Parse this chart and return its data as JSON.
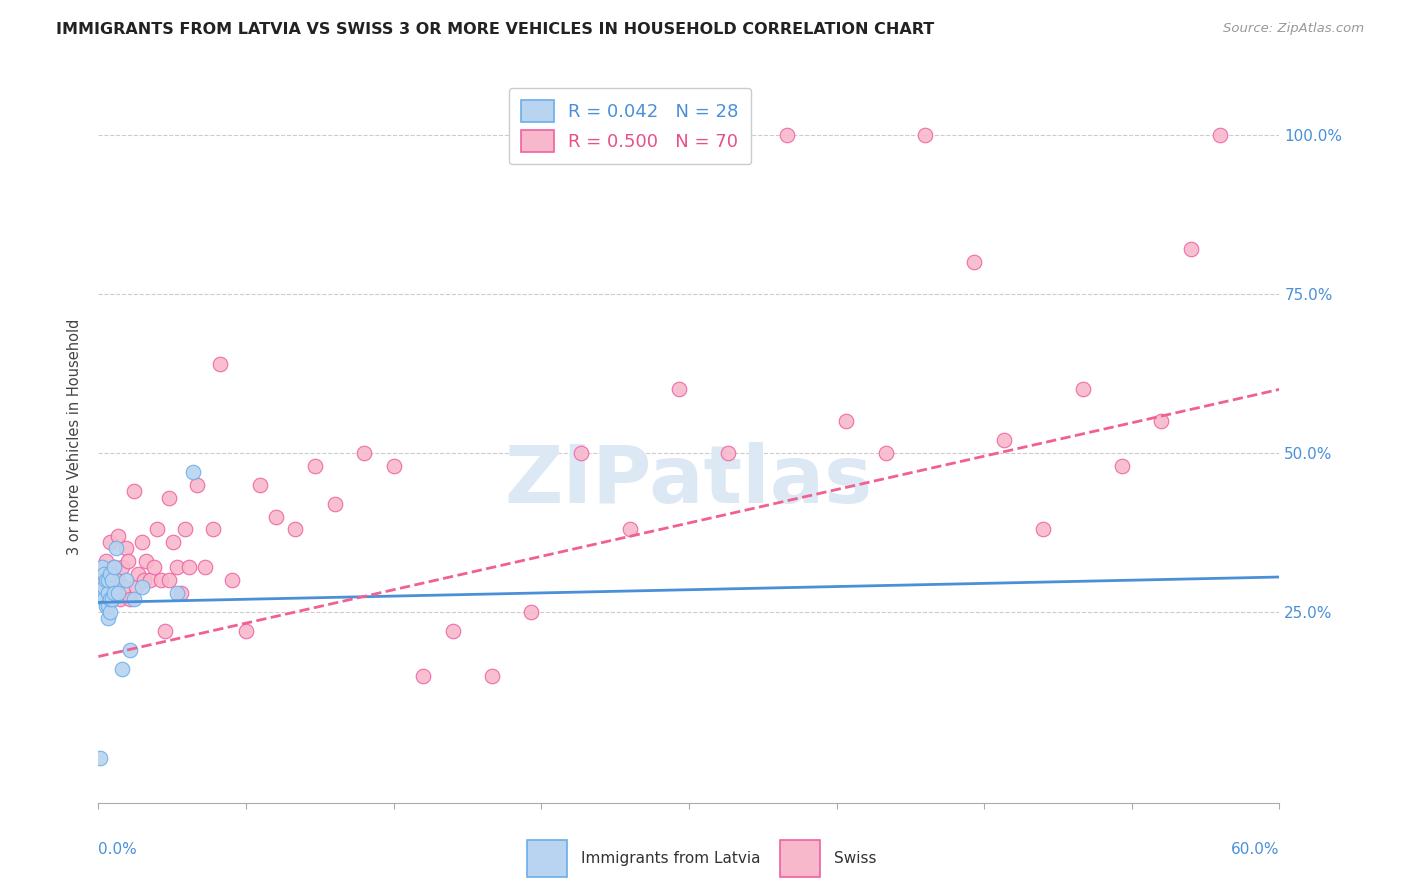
{
  "title": "IMMIGRANTS FROM LATVIA VS SWISS 3 OR MORE VEHICLES IN HOUSEHOLD CORRELATION CHART",
  "source": "Source: ZipAtlas.com",
  "ylabel": "3 or more Vehicles in Household",
  "color_latvia_fill": "#b8d4f0",
  "color_latvia_edge": "#6aaee8",
  "color_swiss_fill": "#f8b8cc",
  "color_swiss_edge": "#f060a0",
  "color_blue": "#4a90d9",
  "color_pink": "#e8508a",
  "color_line_blue": "#4a90d9",
  "color_line_pink": "#f06090",
  "watermark": "ZIPatlas",
  "legend_r1": "R = 0.042   N = 28",
  "legend_r2": "R = 0.500   N = 70",
  "xmin": 0.0,
  "xmax": 0.6,
  "ymin": -0.05,
  "ymax": 1.1,
  "grid_yticks": [
    0.25,
    0.5,
    0.75,
    1.0
  ],
  "ytick_values": [
    0.0,
    0.25,
    0.5,
    0.75,
    1.0
  ],
  "latvia_line_x": [
    0.0,
    0.6
  ],
  "latvia_line_y": [
    0.265,
    0.305
  ],
  "swiss_line_x": [
    0.0,
    0.6
  ],
  "swiss_line_y": [
    0.18,
    0.6
  ],
  "latvia_scatter_x": [
    0.001,
    0.002,
    0.002,
    0.003,
    0.003,
    0.003,
    0.004,
    0.004,
    0.005,
    0.005,
    0.005,
    0.005,
    0.006,
    0.006,
    0.006,
    0.007,
    0.007,
    0.008,
    0.008,
    0.009,
    0.01,
    0.012,
    0.014,
    0.016,
    0.018,
    0.022,
    0.04,
    0.048
  ],
  "latvia_scatter_y": [
    0.02,
    0.28,
    0.32,
    0.27,
    0.29,
    0.31,
    0.26,
    0.3,
    0.24,
    0.26,
    0.28,
    0.3,
    0.25,
    0.27,
    0.31,
    0.27,
    0.3,
    0.28,
    0.32,
    0.35,
    0.28,
    0.16,
    0.3,
    0.19,
    0.27,
    0.29,
    0.28,
    0.47
  ],
  "swiss_scatter_x": [
    0.002,
    0.003,
    0.004,
    0.005,
    0.005,
    0.006,
    0.006,
    0.007,
    0.008,
    0.008,
    0.009,
    0.01,
    0.01,
    0.011,
    0.012,
    0.013,
    0.014,
    0.015,
    0.016,
    0.018,
    0.019,
    0.02,
    0.022,
    0.023,
    0.024,
    0.026,
    0.028,
    0.03,
    0.032,
    0.034,
    0.036,
    0.036,
    0.038,
    0.04,
    0.042,
    0.044,
    0.046,
    0.05,
    0.054,
    0.058,
    0.062,
    0.068,
    0.075,
    0.082,
    0.09,
    0.1,
    0.11,
    0.12,
    0.135,
    0.15,
    0.165,
    0.18,
    0.2,
    0.22,
    0.245,
    0.27,
    0.295,
    0.32,
    0.35,
    0.38,
    0.4,
    0.42,
    0.445,
    0.46,
    0.48,
    0.5,
    0.52,
    0.54,
    0.555,
    0.57
  ],
  "swiss_scatter_y": [
    0.29,
    0.3,
    0.33,
    0.27,
    0.31,
    0.27,
    0.36,
    0.3,
    0.28,
    0.32,
    0.28,
    0.3,
    0.37,
    0.27,
    0.32,
    0.29,
    0.35,
    0.33,
    0.27,
    0.44,
    0.29,
    0.31,
    0.36,
    0.3,
    0.33,
    0.3,
    0.32,
    0.38,
    0.3,
    0.22,
    0.43,
    0.3,
    0.36,
    0.32,
    0.28,
    0.38,
    0.32,
    0.45,
    0.32,
    0.38,
    0.64,
    0.3,
    0.22,
    0.45,
    0.4,
    0.38,
    0.48,
    0.42,
    0.5,
    0.48,
    0.15,
    0.22,
    0.15,
    0.25,
    0.5,
    0.38,
    0.6,
    0.5,
    1.0,
    0.55,
    0.5,
    1.0,
    0.8,
    0.52,
    0.38,
    0.6,
    0.48,
    0.55,
    0.82,
    1.0
  ],
  "grid_color": "#cccccc"
}
